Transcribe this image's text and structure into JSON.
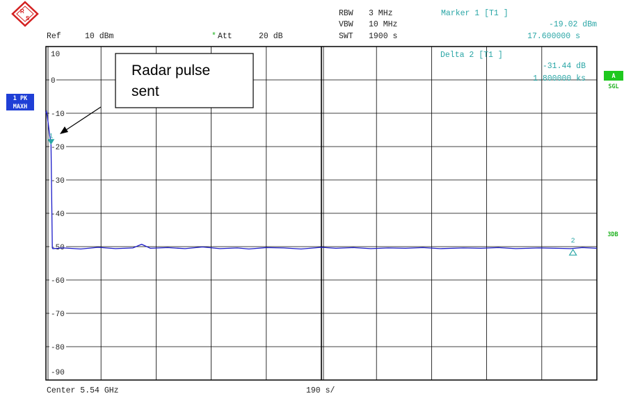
{
  "header": {
    "ref_label": "Ref",
    "ref_value": "10 dBm",
    "att_star": "*",
    "att_label": "Att",
    "att_value": "20 dB",
    "rbw_label": "RBW",
    "rbw_value": "3 MHz",
    "vbw_label": "VBW",
    "vbw_value": "10 MHz",
    "swt_label": "SWT",
    "swt_value": "1900 s"
  },
  "marker1": {
    "title": "Marker 1 [T1 ]",
    "level": "-19.02 dBm",
    "time": "17.600000 s"
  },
  "delta2": {
    "title": "Delta 2 [T1 ]",
    "level": "-31.44 dB",
    "time": "1.800000 ks"
  },
  "side_left": {
    "trace_badge_1": "1 PK",
    "trace_badge_2": "MAXH"
  },
  "side_right": {
    "a_badge": "A",
    "sgl_label": "SGL",
    "db3_label": "3DB"
  },
  "footer": {
    "center": "Center 5.54 GHz",
    "span_per_div": "190 s/"
  },
  "annotation": {
    "line1": "Radar pulse",
    "line2": "sent"
  },
  "colors": {
    "trace": "#1a1ac8",
    "marker": "#2aa6a6",
    "badge_blue": "#1f3fd6",
    "badge_green": "#1ec81e"
  },
  "icons": {
    "logo": "rohde-schwarz-logo-icon"
  },
  "chart_data": {
    "type": "line",
    "xlabel": "",
    "ylabel": "",
    "x_unit": "s",
    "y_unit": "dBm",
    "xlim": [
      0,
      1900
    ],
    "ylim": [
      -90,
      10
    ],
    "yticks": [
      10,
      0,
      -10,
      -20,
      -30,
      -40,
      -50,
      -60,
      -70,
      -80,
      -90
    ],
    "ytick_labels": [
      "10",
      "0",
      "-10",
      "-20",
      "-30",
      "-40",
      "-50",
      "-60",
      "-70",
      "-80",
      "-90"
    ],
    "grid": true,
    "series": [
      {
        "x": [
          0,
          2,
          4,
          8,
          12,
          17.6,
          20,
          22,
          24,
          60,
          120,
          180,
          240,
          300,
          330,
          360,
          420,
          480,
          540,
          600,
          660,
          700,
          760,
          820,
          880,
          950,
          1000,
          1060,
          1120,
          1180,
          1240,
          1300,
          1360,
          1440,
          1500,
          1560,
          1620,
          1700,
          1760,
          1810,
          1850,
          1900
        ],
        "y": [
          -10,
          -9.5,
          -10.5,
          -13,
          -16,
          -19.02,
          -35,
          -50.4,
          -50.6,
          -50.4,
          -50.7,
          -50.2,
          -50.6,
          -50.4,
          -49.3,
          -50.5,
          -50.3,
          -50.6,
          -50.1,
          -50.6,
          -50.4,
          -50.7,
          -50.3,
          -50.4,
          -50.7,
          -50.2,
          -50.5,
          -50.3,
          -50.6,
          -50.4,
          -50.5,
          -50.3,
          -50.6,
          -50.4,
          -50.5,
          -50.3,
          -50.6,
          -50.4,
          -50.5,
          -50.6,
          -50.3,
          -50.5
        ]
      }
    ],
    "markers": [
      {
        "label": "1",
        "x": 17.6,
        "y": -19.02,
        "shape": "filled-triangle"
      },
      {
        "label": "2",
        "x": 1817.6,
        "y": -50.46,
        "shape": "open-triangle"
      }
    ]
  }
}
